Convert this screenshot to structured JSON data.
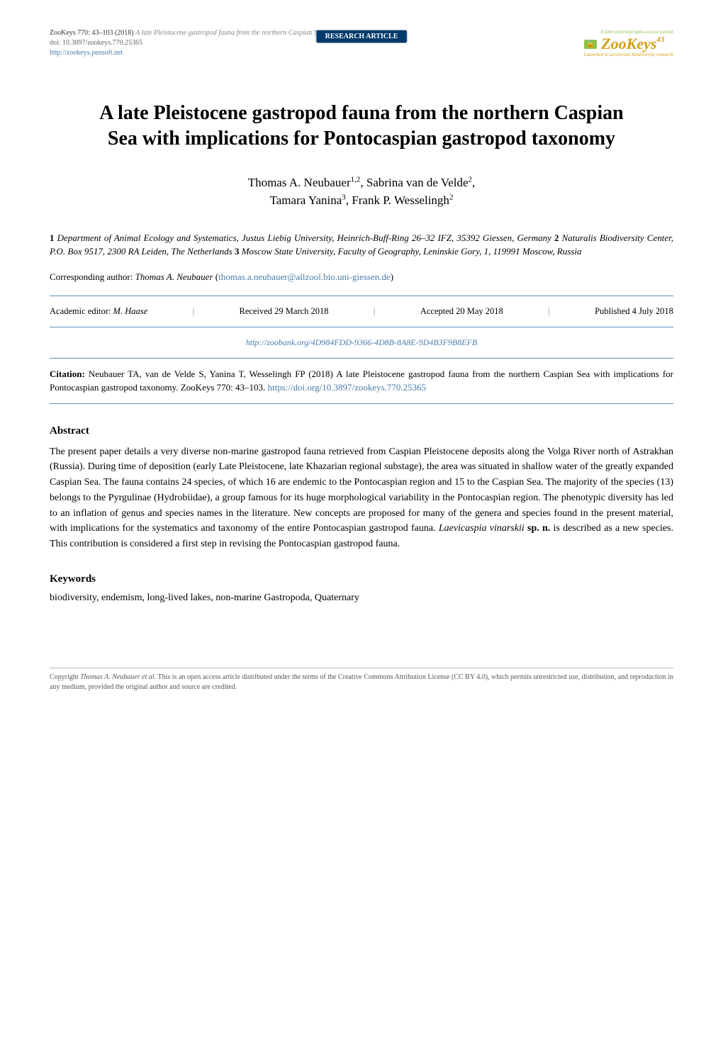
{
  "header": {
    "journal_line": "ZooKeys 770: 43–103 (2018)",
    "running_title": "A late Pleistocene gastropod fauna from the northern Caspian Sea...",
    "doi_label": "doi: 10.3897/zookeys.770.25365",
    "journal_url": "http://zookeys.pensoft.net",
    "badge": "RESEARCH ARTICLE",
    "oa_label": "A peer-reviewed open-access journal",
    "logo_text": "ZooKeys",
    "page_number": "43",
    "tagline": "Launched to accelerate biodiversity research"
  },
  "title": "A late Pleistocene gastropod fauna from the northern Caspian Sea with implications for Pontocaspian gastropod taxonomy",
  "authors_line1": "Thomas A. Neubauer",
  "authors_sup1": "1,2",
  "authors_line1b": ", Sabrina van de Velde",
  "authors_sup1b": "2",
  "authors_line1c": ",",
  "authors_line2a": "Tamara Yanina",
  "authors_sup2a": "3",
  "authors_line2b": ", Frank P. Wesselingh",
  "authors_sup2b": "2",
  "affiliations": {
    "a1num": "1",
    "a1": " Department of Animal Ecology and Systematics, Justus Liebig University, Heinrich-Buff-Ring 26–32 IFZ, 35392 Giessen, Germany ",
    "a2num": "2",
    "a2": " Naturalis Biodiversity Center, P.O. Box 9517, 2300 RA Leiden, The Netherlands ",
    "a3num": "3",
    "a3": " Moscow State University, Faculty of Geography, Leninskie Gory, 1, 119991 Moscow, Russia"
  },
  "corresponding": {
    "label": "Corresponding author: ",
    "name": "Thomas A. Neubauer",
    "email_open": " (",
    "email": "thomas.a.neubauer@allzool.bio.uni-giessen.de",
    "email_close": ")"
  },
  "editorial": {
    "editor_label": "Academic editor: ",
    "editor_name": "M. Haase",
    "received": "Received 29 March 2018",
    "accepted": "Accepted 20 May 2018",
    "published": "Published 4 July 2018"
  },
  "zoobank": "http://zoobank.org/4D984FDD-9366-4D8B-8A8E-9D4B3F9B8EFB",
  "citation": {
    "label": "Citation: ",
    "text": "Neubauer TA, van de Velde S, Yanina T, Wesselingh FP (2018) A late Pleistocene gastropod fauna from the northern Caspian Sea with implications for Pontocaspian gastropod taxonomy. ZooKeys 770: 43–103. ",
    "doi_url": "https://doi.org/10.3897/zookeys.770.25365"
  },
  "abstract": {
    "heading": "Abstract",
    "p1": "The present paper details a very diverse non-marine gastropod fauna retrieved from Caspian Pleistocene deposits along the Volga River north of Astrakhan (Russia). During time of deposition (early Late Pleistocene, late Khazarian regional substage), the area was situated in shallow water of the greatly expanded Caspian Sea. The fauna contains 24 species, of which 16 are endemic to the Pontocaspian region and 15 to the Caspian Sea. The majority of the species (13) belongs to the Pyrgulinae (Hydrobiidae), a group famous for its huge morphological variability in the Pontocaspian region. The phenotypic diversity has led to an inflation of genus and species names in the literature. New concepts are proposed for many of the genera and species found in the present material, with implications for the systematics and taxonomy of the entire Pontocaspian gastropod fauna. ",
    "species": "Laevicaspia vinarskii",
    "sp_n": " sp. n.",
    "p2": " is described as a new species. This contribution is considered a first step in revising the Pontocaspian gastropod fauna."
  },
  "keywords": {
    "heading": "Keywords",
    "text": "biodiversity, endemism, long-lived lakes, non-marine Gastropoda, Quaternary"
  },
  "footer": {
    "copy_prefix": "Copyright ",
    "copy_name": "Thomas A. Neubauer et al.",
    "copy_text": " This is an open access article distributed under the terms of the Creative Commons Attribution License (CC BY 4.0), which permits unrestricted use, distribution, and reproduction in any medium, provided the original author and source are credited."
  },
  "colors": {
    "link": "#4a7ba8",
    "rule": "#5a8fbf",
    "badge_bg": "#003a6b",
    "logo": "#d4a017",
    "oa": "#8bc34a"
  }
}
